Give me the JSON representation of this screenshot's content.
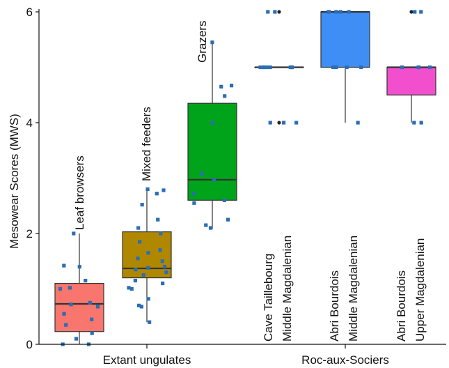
{
  "chart_data": {
    "type": "box",
    "ylabel": "Mesowear Scores (MWS)",
    "ylim": [
      0,
      6
    ],
    "yticks": [
      0,
      2,
      4,
      6
    ],
    "groups": [
      {
        "name": "Extant ungulates",
        "categories": [
          "Leaf browsers",
          "Mixed feeders",
          "Grazers"
        ]
      },
      {
        "name": "Roc-aux-Sociers",
        "categories": [
          "Cave Taillebourg Middle Magdalenian",
          "Abri Bourdois Middle Magdalenian",
          "Abri Bourdois Upper Magdalenian"
        ]
      }
    ],
    "boxes": [
      {
        "label_lines": [
          "Leaf browsers"
        ],
        "color": "#f8766d",
        "whisker_low": 0,
        "q1": 0.23,
        "median": 0.73,
        "q3": 1.1,
        "whisker_high": 2.0,
        "outliers": [],
        "points": [
          0.0,
          0.0,
          0.1,
          0.2,
          0.35,
          0.45,
          0.55,
          0.68,
          0.72,
          0.75,
          1.0,
          1.02,
          1.15,
          1.4,
          1.42,
          2.0
        ]
      },
      {
        "label_lines": [
          "Mixed feeders"
        ],
        "color": "#b08800",
        "whisker_low": 0.4,
        "q1": 1.2,
        "median": 1.37,
        "q3": 2.03,
        "whisker_high": 2.8,
        "outliers": [],
        "points": [
          0.4,
          0.68,
          0.7,
          0.82,
          1.0,
          1.02,
          1.1,
          1.15,
          1.25,
          1.3,
          1.35,
          1.38,
          1.4,
          1.5,
          1.55,
          1.65,
          1.7,
          1.85,
          2.0,
          2.1,
          2.25,
          2.52,
          2.72,
          2.78,
          2.8
        ]
      },
      {
        "label_lines": [
          "Grazers"
        ],
        "color": "#00a41a",
        "whisker_low": 2.08,
        "q1": 2.6,
        "median": 2.97,
        "q3": 4.35,
        "whisker_high": 5.45,
        "outliers": [],
        "points": [
          2.1,
          2.15,
          2.25,
          2.55,
          2.6,
          2.72,
          2.97,
          3.08,
          4.0,
          4.48,
          4.65,
          4.67,
          5.45
        ]
      },
      {
        "label_lines": [
          "Cave Taillebourg",
          "Middle Magdalenian"
        ],
        "color": "#ffffff",
        "whisker_low": 5.0,
        "q1": 5.0,
        "median": 5.0,
        "q3": 5.0,
        "whisker_high": 5.0,
        "outliers": [
          4.0,
          6.0
        ],
        "points": [
          4.0,
          4.0,
          4.0,
          5.0,
          5.0,
          5.0,
          5.0,
          5.0,
          5.0,
          5.0,
          5.0,
          6.0,
          6.0
        ]
      },
      {
        "label_lines": [
          "Abri Bourdois",
          "Middle Magdalenian"
        ],
        "color": "#3f8ef5",
        "whisker_low": 4.0,
        "q1": 5.0,
        "median": 6.0,
        "q3": 6.0,
        "whisker_high": 6.0,
        "outliers": [],
        "points": [
          4.0,
          5.0,
          5.0,
          5.0,
          5.0,
          6.0,
          6.0,
          6.0,
          6.0,
          6.0
        ]
      },
      {
        "label_lines": [
          "Abri Bourdois",
          "Upper Magdalenian"
        ],
        "color": "#f24fcf",
        "whisker_low": 4.0,
        "q1": 4.5,
        "median": 5.0,
        "q3": 5.0,
        "whisker_high": 5.0,
        "outliers": [
          6.0
        ],
        "points": [
          4.0,
          4.0,
          5.0,
          5.0,
          5.0,
          5.0,
          6.0,
          6.0
        ]
      }
    ]
  },
  "colors": {
    "point": "#2a6eb5",
    "outlier": "#222222"
  }
}
